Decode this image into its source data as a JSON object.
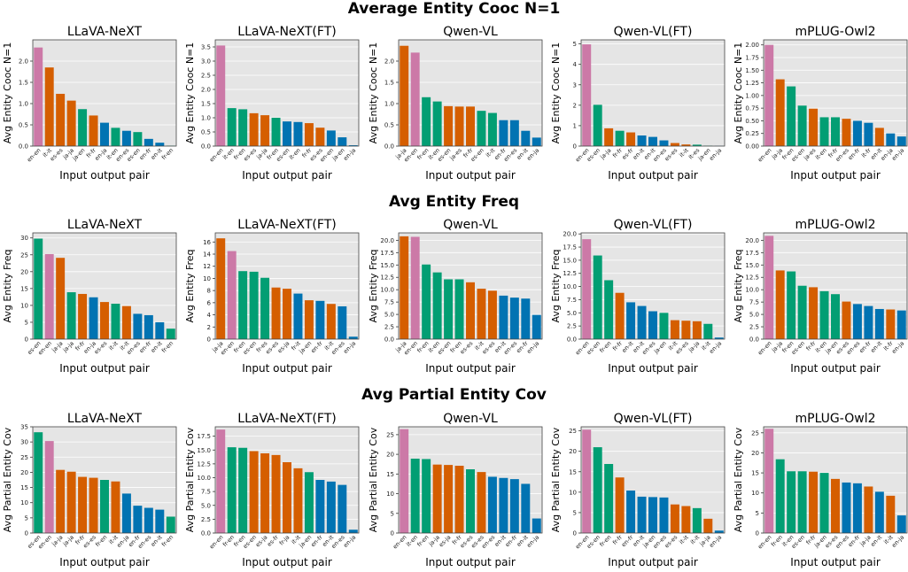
{
  "figure": {
    "row_titles": [
      "Average Entity Cooc N=1",
      "Avg Entity Freq",
      "Avg Partial Entity Cov"
    ]
  },
  "colors": {
    "pink": "#cc79a7",
    "green": "#029e73",
    "orange": "#d55e00",
    "blue": "#0173b2",
    "panel_bg": "#e5e5e5",
    "grid": "#ffffff"
  },
  "chart_data": [
    {
      "type": "bar",
      "title": "LLaVA-NeXT",
      "xlabel": "Input output pair",
      "ylabel": "Avg Entity Cooc N=1",
      "ylim": [
        0,
        2.5
      ],
      "yticks": [
        0.0,
        0.5,
        1.0,
        1.5,
        2.0
      ],
      "tick_labels": [
        "0.0",
        "0.5",
        "1.0",
        "1.5",
        "2.0"
      ],
      "categories": [
        "en-en",
        "it-it",
        "es-es",
        "ja-ja",
        "ja-en",
        "fr-fr",
        "en-ja",
        "it-en",
        "en-es",
        "es-en",
        "en-fr",
        "en-it",
        "fr-en"
      ],
      "values": [
        2.32,
        1.85,
        1.23,
        1.07,
        0.87,
        0.72,
        0.55,
        0.43,
        0.36,
        0.33,
        0.17,
        0.08,
        0.01
      ],
      "colors": [
        "pink",
        "orange",
        "orange",
        "orange",
        "green",
        "orange",
        "blue",
        "green",
        "blue",
        "green",
        "blue",
        "blue",
        "green"
      ]
    },
    {
      "type": "bar",
      "title": "LLaVA-NeXT(FT)",
      "xlabel": "Input output pair",
      "ylabel": "Avg Entity Cooc N=1",
      "ylim": [
        0,
        3.75
      ],
      "yticks": [
        0.0,
        0.5,
        1.0,
        1.5,
        2.0,
        2.5,
        3.0,
        3.5
      ],
      "tick_labels": [
        "0.0",
        "0.5",
        "1.0",
        "1.5",
        "2.0",
        "2.5",
        "3.0",
        "3.5"
      ],
      "categories": [
        "en-en",
        "it-en",
        "fr-en",
        "es-es",
        "ja-ja",
        "fr-en",
        "es-en",
        "it-en",
        "fr-fr",
        "es-es",
        "en-en",
        "ja-en",
        "en-ja"
      ],
      "values": [
        3.55,
        1.34,
        1.3,
        1.16,
        1.09,
        1.0,
        0.87,
        0.85,
        0.81,
        0.65,
        0.55,
        0.31,
        0.03
      ],
      "colors": [
        "pink",
        "green",
        "green",
        "orange",
        "orange",
        "green",
        "blue",
        "blue",
        "orange",
        "orange",
        "blue",
        "blue",
        "blue"
      ]
    },
    {
      "type": "bar",
      "title": "Qwen-VL",
      "xlabel": "Input output pair",
      "ylabel": "Avg Entity Cooc N=1",
      "ylim": [
        0,
        2.5
      ],
      "yticks": [
        0.0,
        0.5,
        1.0,
        1.5,
        2.0
      ],
      "tick_labels": [
        "0.0",
        "0.5",
        "1.0",
        "1.5",
        "2.0"
      ],
      "categories": [
        "ja-ja",
        "en-en",
        "fr-en",
        "it-en",
        "es-en",
        "ja-es",
        "fr-fr",
        "es-en",
        "it-it",
        "en-fr",
        "en-es",
        "en-it",
        "en-ja"
      ],
      "values": [
        2.36,
        2.2,
        1.15,
        1.05,
        0.94,
        0.93,
        0.93,
        0.83,
        0.78,
        0.61,
        0.61,
        0.36,
        0.2
      ],
      "colors": [
        "orange",
        "pink",
        "green",
        "green",
        "orange",
        "orange",
        "orange",
        "green",
        "green",
        "blue",
        "blue",
        "blue",
        "blue"
      ]
    },
    {
      "type": "bar",
      "title": "Qwen-VL(FT)",
      "xlabel": "Input output pair",
      "ylabel": "Avg Entity Cooc N=1",
      "ylim": [
        0,
        5.2
      ],
      "yticks": [
        0,
        1,
        2,
        3,
        4,
        5
      ],
      "tick_labels": [
        "0",
        "1",
        "2",
        "3",
        "4",
        "5"
      ],
      "categories": [
        "en-en",
        "es-en",
        "ja-ja",
        "fr-fr",
        "es-fr",
        "en-it",
        "en-it",
        "en-es",
        "es-es",
        "it-it",
        "it-es",
        "ja-en",
        "en-ja"
      ],
      "values": [
        4.98,
        2.02,
        0.87,
        0.75,
        0.67,
        0.52,
        0.45,
        0.28,
        0.15,
        0.08,
        0.07,
        0.02,
        0.01
      ],
      "colors": [
        "pink",
        "green",
        "orange",
        "green",
        "orange",
        "blue",
        "blue",
        "blue",
        "orange",
        "orange",
        "green",
        "green",
        "blue"
      ]
    },
    {
      "type": "bar",
      "title": "mPLUG-Owl2",
      "xlabel": "Input output pair",
      "ylabel": "Avg Entity Cooc N=1",
      "ylim": [
        0,
        2.1
      ],
      "yticks": [
        0.0,
        0.25,
        0.5,
        0.75,
        1.0,
        1.25,
        1.5,
        1.75,
        2.0
      ],
      "tick_labels": [
        "0.00",
        "0.25",
        "0.50",
        "0.75",
        "1.00",
        "1.25",
        "1.50",
        "1.75",
        "2.00"
      ],
      "categories": [
        "en-en",
        "ja-ja",
        "fr-en",
        "es-en",
        "ja-es",
        "it-en",
        "fr-fr",
        "en-es",
        "en-fr",
        "it-fr",
        "en-it",
        "en-ja",
        "en-ja"
      ],
      "values": [
        2.0,
        1.32,
        1.18,
        0.8,
        0.74,
        0.57,
        0.57,
        0.54,
        0.5,
        0.46,
        0.36,
        0.25,
        0.19
      ],
      "colors": [
        "pink",
        "orange",
        "green",
        "green",
        "orange",
        "green",
        "green",
        "orange",
        "blue",
        "blue",
        "orange",
        "blue",
        "blue"
      ]
    },
    {
      "type": "bar",
      "title": "LLaVA-NeXT",
      "xlabel": "Input output pair",
      "ylabel": "Avg Entity Freq",
      "ylim": [
        0,
        31.5
      ],
      "yticks": [
        0,
        5,
        10,
        15,
        20,
        25,
        30
      ],
      "tick_labels": [
        "0",
        "5",
        "10",
        "15",
        "20",
        "25",
        "30"
      ],
      "categories": [
        "es-en",
        "en-en",
        "ja-ja",
        "ja-ja",
        "fr-fr",
        "en-ja",
        "es-es",
        "it-it",
        "it-it",
        "en-es",
        "en-fr",
        "en-it",
        "fr-en"
      ],
      "values": [
        29.8,
        25.2,
        24.1,
        13.9,
        13.4,
        12.4,
        11.0,
        10.5,
        9.8,
        7.5,
        7.1,
        5.0,
        3.1
      ],
      "colors": [
        "green",
        "pink",
        "orange",
        "green",
        "orange",
        "blue",
        "orange",
        "green",
        "orange",
        "blue",
        "blue",
        "blue",
        "green"
      ]
    },
    {
      "type": "bar",
      "title": "LLaVA-NeXT(FT)",
      "xlabel": "Input output pair",
      "ylabel": "Avg Entity Freq",
      "ylim": [
        0,
        17.5
      ],
      "yticks": [
        0,
        2,
        4,
        6,
        8,
        10,
        12,
        14,
        16
      ],
      "tick_labels": [
        "0",
        "2",
        "4",
        "6",
        "8",
        "10",
        "12",
        "14",
        "16"
      ],
      "categories": [
        "ja-ja",
        "en-en",
        "fr-en",
        "es-en",
        "fr-es",
        "es-es",
        "es-ja",
        "fr-it",
        "ja-en",
        "en-fr",
        "it-it",
        "en-es",
        "en-ja"
      ],
      "values": [
        16.6,
        14.5,
        11.2,
        11.1,
        10.1,
        8.5,
        8.3,
        7.5,
        6.4,
        6.3,
        5.8,
        5.4,
        0.4
      ],
      "colors": [
        "orange",
        "pink",
        "green",
        "green",
        "green",
        "orange",
        "orange",
        "blue",
        "orange",
        "blue",
        "orange",
        "blue",
        "blue"
      ]
    },
    {
      "type": "bar",
      "title": "Qwen-VL",
      "xlabel": "Input output pair",
      "ylabel": "Avg Entity Freq",
      "ylim": [
        0,
        21.5
      ],
      "yticks": [
        0.0,
        2.5,
        5.0,
        7.5,
        10.0,
        12.5,
        15.0,
        17.5,
        20.0
      ],
      "tick_labels": [
        "0.0",
        "2.5",
        "5.0",
        "7.5",
        "10.0",
        "12.5",
        "15.0",
        "17.5",
        "20.0"
      ],
      "categories": [
        "ja-ja",
        "en-en",
        "fr-en",
        "it-en",
        "es-en",
        "fr-en",
        "es-es",
        "it-it",
        "es-es",
        "en-it",
        "en-es",
        "en-fr",
        "en-ja"
      ],
      "values": [
        20.8,
        20.7,
        15.1,
        13.5,
        12.1,
        12.1,
        11.5,
        10.2,
        9.8,
        8.8,
        8.4,
        8.2,
        4.9
      ],
      "colors": [
        "orange",
        "pink",
        "green",
        "green",
        "green",
        "green",
        "orange",
        "orange",
        "orange",
        "blue",
        "blue",
        "blue",
        "blue"
      ]
    },
    {
      "type": "bar",
      "title": "Qwen-VL(FT)",
      "xlabel": "Input output pair",
      "ylabel": "Avg Entity Freq",
      "ylim": [
        0,
        20.2
      ],
      "yticks": [
        0.0,
        2.5,
        5.0,
        7.5,
        10.0,
        12.5,
        15.0,
        17.5,
        20.0
      ],
      "tick_labels": [
        "0.0",
        "2.5",
        "5.0",
        "7.5",
        "10.0",
        "12.5",
        "15.0",
        "17.5",
        "20.0"
      ],
      "categories": [
        "en-en",
        "es-en",
        "fr-en",
        "fr-fr",
        "en-it",
        "en-it",
        "en-es",
        "ja-en",
        "it-it",
        "es-es",
        "ja-ja",
        "it-it",
        "en-ja"
      ],
      "values": [
        19.0,
        15.9,
        11.2,
        8.8,
        7.0,
        6.3,
        5.3,
        5.0,
        3.6,
        3.5,
        3.4,
        2.9,
        0.3
      ],
      "colors": [
        "pink",
        "green",
        "green",
        "orange",
        "blue",
        "blue",
        "blue",
        "green",
        "orange",
        "orange",
        "orange",
        "green",
        "blue"
      ]
    },
    {
      "type": "bar",
      "title": "mPLUG-Owl2",
      "xlabel": "Input output pair",
      "ylabel": "Avg Entity Freq",
      "ylim": [
        0,
        21.5
      ],
      "yticks": [
        0.0,
        2.5,
        5.0,
        7.5,
        10.0,
        12.5,
        15.0,
        17.5,
        20.0
      ],
      "tick_labels": [
        "0.0",
        "2.5",
        "5.0",
        "7.5",
        "10.0",
        "12.5",
        "15.0",
        "17.5",
        "20.0"
      ],
      "categories": [
        "en-en",
        "ja-ja",
        "fr-en",
        "es-en",
        "fr-fr",
        "it-en",
        "ja-en",
        "es-es",
        "en-es",
        "en-fr",
        "en-it",
        "it-fr",
        "en-ja"
      ],
      "values": [
        20.9,
        13.9,
        13.7,
        10.8,
        10.5,
        9.7,
        9.1,
        7.6,
        7.1,
        6.7,
        6.1,
        6.0,
        5.8
      ],
      "colors": [
        "pink",
        "orange",
        "green",
        "green",
        "orange",
        "green",
        "green",
        "orange",
        "blue",
        "blue",
        "blue",
        "orange",
        "blue"
      ]
    },
    {
      "type": "bar",
      "title": "LLaVA-NeXT",
      "xlabel": "Input output pair",
      "ylabel": "Avg Partial Entity Cov",
      "ylim": [
        0,
        35
      ],
      "yticks": [
        0,
        5,
        10,
        15,
        20,
        25,
        30,
        35
      ],
      "tick_labels": [
        "0",
        "5",
        "10",
        "15",
        "20",
        "25",
        "30",
        "35"
      ],
      "categories": [
        "es-en",
        "en-en",
        "ja-ja",
        "ja-ja",
        "fr-fr",
        "es-es",
        "fr-en",
        "it-it",
        "en-ja",
        "en-fr",
        "en-es",
        "en-it",
        "fr-en"
      ],
      "values": [
        33.2,
        30.3,
        20.8,
        20.2,
        18.5,
        18.2,
        17.5,
        17.0,
        13.0,
        9.0,
        8.3,
        7.7,
        5.4
      ],
      "colors": [
        "green",
        "pink",
        "orange",
        "orange",
        "orange",
        "orange",
        "green",
        "orange",
        "blue",
        "blue",
        "blue",
        "blue",
        "green"
      ]
    },
    {
      "type": "bar",
      "title": "LLaVA-NeXT(FT)",
      "xlabel": "Input output pair",
      "ylabel": "Avg Partial Entity Cov",
      "ylim": [
        0,
        19.2
      ],
      "yticks": [
        0.0,
        2.5,
        5.0,
        7.5,
        10.0,
        12.5,
        15.0,
        17.5
      ],
      "tick_labels": [
        "0.0",
        "2.5",
        "5.0",
        "7.5",
        "10.0",
        "12.5",
        "15.0",
        "17.5"
      ],
      "categories": [
        "en-en",
        "fr-en",
        "fr-en",
        "es-en",
        "es-ja",
        "es-fr",
        "fr-ja",
        "it-it",
        "ja-en",
        "en-fr",
        "en-it",
        "en-es",
        "en-ja"
      ],
      "values": [
        18.7,
        15.5,
        15.4,
        14.8,
        14.4,
        14.1,
        12.8,
        11.7,
        11.0,
        9.6,
        9.3,
        8.7,
        0.6
      ],
      "colors": [
        "pink",
        "green",
        "green",
        "orange",
        "orange",
        "orange",
        "orange",
        "orange",
        "green",
        "blue",
        "blue",
        "blue",
        "blue"
      ]
    },
    {
      "type": "bar",
      "title": "Qwen-VL",
      "xlabel": "Input output pair",
      "ylabel": "Avg Partial Entity Cov",
      "ylim": [
        0,
        27
      ],
      "yticks": [
        0,
        5,
        10,
        15,
        20,
        25
      ],
      "tick_labels": [
        "0",
        "5",
        "10",
        "15",
        "20",
        "25"
      ],
      "categories": [
        "en-en",
        "it-en",
        "fr-en",
        "ja-ja",
        "es-ja",
        "fr-fr",
        "es-es",
        "es-es",
        "en-es",
        "en-it",
        "en-fr",
        "en-it",
        "en-ja"
      ],
      "values": [
        26.4,
        18.9,
        18.8,
        17.4,
        17.3,
        17.1,
        16.2,
        15.5,
        14.3,
        14.0,
        13.7,
        12.5,
        3.7
      ],
      "colors": [
        "pink",
        "green",
        "green",
        "orange",
        "orange",
        "orange",
        "green",
        "orange",
        "blue",
        "blue",
        "blue",
        "blue",
        "blue"
      ]
    },
    {
      "type": "bar",
      "title": "Qwen-VL(FT)",
      "xlabel": "Input output pair",
      "ylabel": "Avg Partial Entity Cov",
      "ylim": [
        0,
        26
      ],
      "yticks": [
        0,
        5,
        10,
        15,
        20,
        25
      ],
      "tick_labels": [
        "0",
        "5",
        "10",
        "15",
        "20",
        "25"
      ],
      "categories": [
        "en-en",
        "es-en",
        "fr-en",
        "fr-fr",
        "en-fr",
        "en-it",
        "ja-en",
        "en-es",
        "es-es",
        "it-it",
        "it-it",
        "ja-ja",
        "en-ja"
      ],
      "values": [
        25.3,
        21.0,
        16.9,
        13.6,
        10.4,
        8.9,
        8.8,
        8.7,
        7.0,
        6.6,
        6.1,
        3.5,
        0.6
      ],
      "colors": [
        "pink",
        "green",
        "green",
        "orange",
        "blue",
        "blue",
        "blue",
        "blue",
        "orange",
        "orange",
        "green",
        "orange",
        "blue"
      ]
    },
    {
      "type": "bar",
      "title": "mPLUG-Owl2",
      "xlabel": "Input output pair",
      "ylabel": "Avg Partial Entity Cov",
      "ylim": [
        0,
        26.5
      ],
      "yticks": [
        0,
        5,
        10,
        15,
        20,
        25
      ],
      "tick_labels": [
        "0",
        "5",
        "10",
        "15",
        "20",
        "25"
      ],
      "categories": [
        "en-en",
        "fr-en",
        "it-en",
        "es-en",
        "fr-fr",
        "ja-en",
        "es-es",
        "en-es",
        "en-fr",
        "ja-ja",
        "en-it",
        "it-it",
        "en-ja"
      ],
      "values": [
        26.0,
        18.4,
        15.4,
        15.4,
        15.3,
        15.0,
        13.5,
        12.6,
        12.4,
        11.6,
        10.3,
        9.3,
        4.4
      ],
      "colors": [
        "pink",
        "green",
        "green",
        "green",
        "orange",
        "green",
        "orange",
        "blue",
        "blue",
        "orange",
        "blue",
        "orange",
        "blue"
      ]
    }
  ]
}
